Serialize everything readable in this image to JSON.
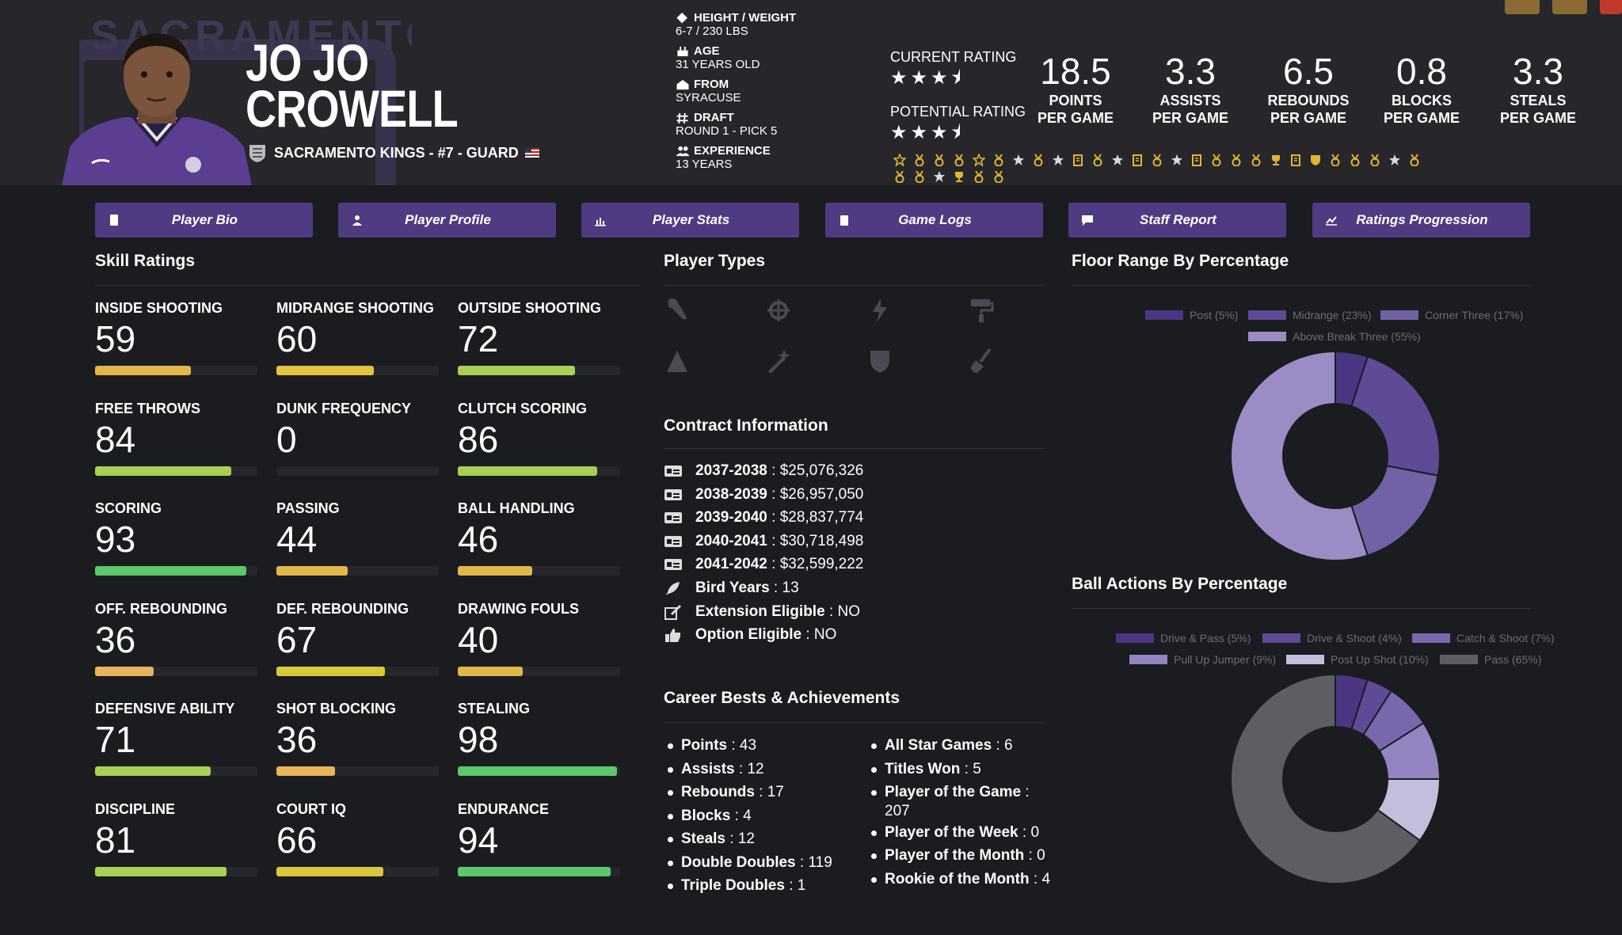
{
  "player": {
    "first_name": "JO JO",
    "last_name": "CROWELL",
    "team_line": "SACRAMENTO KINGS - #7 - GUARD",
    "logo_text": "SACRAMENTO"
  },
  "info": [
    {
      "icon": "ruler-icon",
      "label": "HEIGHT / WEIGHT",
      "value": "6-7 / 230 LBS"
    },
    {
      "icon": "cake-icon",
      "label": "AGE",
      "value": "31 YEARS OLD"
    },
    {
      "icon": "school-icon",
      "label": "FROM",
      "value": "SYRACUSE"
    },
    {
      "icon": "hash-icon",
      "label": "DRAFT",
      "value": "ROUND 1 - PICK 5"
    },
    {
      "icon": "users-icon",
      "label": "EXPERIENCE",
      "value": "13 YEARS"
    }
  ],
  "ratings": {
    "current_label": "CURRENT RATING",
    "current_stars": 3.5,
    "potential_label": "POTENTIAL RATING",
    "potential_stars": 3.5
  },
  "stats": [
    {
      "value": "18.5",
      "line1": "POINTS",
      "line2": "PER GAME"
    },
    {
      "value": "3.3",
      "line1": "ASSISTS",
      "line2": "PER GAME"
    },
    {
      "value": "6.5",
      "line1": "REBOUNDS",
      "line2": "PER GAME"
    },
    {
      "value": "0.8",
      "line1": "BLOCKS",
      "line2": "PER GAME"
    },
    {
      "value": "3.3",
      "line1": "STEALS",
      "line2": "PER GAME"
    }
  ],
  "badges": [
    "star-outline",
    "medal",
    "medal",
    "medal",
    "star-outline",
    "medal",
    "star",
    "medal",
    "star",
    "clipboard",
    "medal",
    "star",
    "clipboard",
    "medal",
    "star",
    "clipboard",
    "medal",
    "medal",
    "medal",
    "trophy",
    "clipboard",
    "shield",
    "medal",
    "medal",
    "medal",
    "star",
    "medal",
    "medal",
    "medal",
    "star",
    "trophy",
    "medal",
    "medal"
  ],
  "nav": [
    {
      "icon": "id-card-icon",
      "label": "Player Bio"
    },
    {
      "icon": "user-profile-icon",
      "label": "Player Profile"
    },
    {
      "icon": "bar-chart-icon",
      "label": "Player Stats"
    },
    {
      "icon": "clipboard-icon",
      "label": "Game Logs"
    },
    {
      "icon": "chat-icon",
      "label": "Staff Report"
    },
    {
      "icon": "line-chart-icon",
      "label": "Ratings Progression"
    }
  ],
  "sections": {
    "skills": "Skill Ratings",
    "player_types": "Player Types",
    "floor_range": "Floor Range By Percentage",
    "contract": "Contract Information",
    "career": "Career Bests & Achievements",
    "ball_actions": "Ball Actions By Percentage"
  },
  "skills": [
    {
      "name": "INSIDE SHOOTING",
      "value": 59,
      "color": "#e3b649"
    },
    {
      "name": "MIDRANGE SHOOTING",
      "value": 60,
      "color": "#e3c43c"
    },
    {
      "name": "OUTSIDE SHOOTING",
      "value": 72,
      "color": "#a9cf53"
    },
    {
      "name": "FREE THROWS",
      "value": 84,
      "color": "#a9cf53"
    },
    {
      "name": "DUNK FREQUENCY",
      "value": 0,
      "color": "#e3b649"
    },
    {
      "name": "CLUTCH SCORING",
      "value": 86,
      "color": "#a9cf53"
    },
    {
      "name": "SCORING",
      "value": 93,
      "color": "#5dc86a"
    },
    {
      "name": "PASSING",
      "value": 44,
      "color": "#e3b649"
    },
    {
      "name": "BALL HANDLING",
      "value": 46,
      "color": "#e3b649"
    },
    {
      "name": "OFF. REBOUNDING",
      "value": 36,
      "color": "#e8b45c"
    },
    {
      "name": "DEF. REBOUNDING",
      "value": 67,
      "color": "#d9c83a"
    },
    {
      "name": "DRAWING FOULS",
      "value": 40,
      "color": "#e3b649"
    },
    {
      "name": "DEFENSIVE ABILITY",
      "value": 71,
      "color": "#a9cf53"
    },
    {
      "name": "SHOT BLOCKING",
      "value": 36,
      "color": "#e8b45c"
    },
    {
      "name": "STEALING",
      "value": 98,
      "color": "#5dc86a"
    },
    {
      "name": "DISCIPLINE",
      "value": 81,
      "color": "#a9cf53"
    },
    {
      "name": "COURT IQ",
      "value": 66,
      "color": "#d9c83a"
    },
    {
      "name": "ENDURANCE",
      "value": 94,
      "color": "#5dc86a"
    }
  ],
  "player_types": [
    "wrench-icon",
    "crosshair-icon",
    "lightning-icon",
    "paint-roller-icon",
    "triangle-ruler-icon",
    "magic-wand-icon",
    "shield-icon",
    "broom-icon"
  ],
  "contract": [
    {
      "icon": "money-icon",
      "label": "2037-2038",
      "value": "$25,076,326"
    },
    {
      "icon": "money-icon",
      "label": "2038-2039",
      "value": "$26,957,050"
    },
    {
      "icon": "money-icon",
      "label": "2039-2040",
      "value": "$28,837,774"
    },
    {
      "icon": "money-icon",
      "label": "2040-2041",
      "value": "$30,718,498"
    },
    {
      "icon": "money-icon",
      "label": "2041-2042",
      "value": "$32,599,222"
    },
    {
      "icon": "feather-icon",
      "label": "Bird Years",
      "value": "13"
    },
    {
      "icon": "edit-icon",
      "label": "Extension Eligible",
      "value": "NO"
    },
    {
      "icon": "thumbs-up-icon",
      "label": "Option Eligible",
      "value": "NO"
    }
  ],
  "career_left": [
    {
      "label": "Points",
      "value": "43"
    },
    {
      "label": "Assists",
      "value": "12"
    },
    {
      "label": "Rebounds",
      "value": "17"
    },
    {
      "label": "Blocks",
      "value": "4"
    },
    {
      "label": "Steals",
      "value": "12"
    },
    {
      "label": "Double Doubles",
      "value": "119"
    },
    {
      "label": "Triple Doubles",
      "value": "1"
    }
  ],
  "career_right": [
    {
      "label": "All Star Games",
      "value": "6"
    },
    {
      "label": "Titles Won",
      "value": "5"
    },
    {
      "label": "Player of the Game",
      "value": "207"
    },
    {
      "label": "Player of the Week",
      "value": "0"
    },
    {
      "label": "Player of the Month",
      "value": "0"
    },
    {
      "label": "Rookie of the Month",
      "value": "4"
    }
  ],
  "chart_data": [
    {
      "type": "pie",
      "title": "Floor Range By Percentage",
      "categories": [
        "Post (5%)",
        "Midrange (23%)",
        "Corner Three (17%)",
        "Above Break Three (55%)"
      ],
      "values": [
        5,
        23,
        17,
        55
      ],
      "colors": [
        "#4b3683",
        "#5f4a96",
        "#7361a6",
        "#9c8cc6"
      ],
      "legend": "top"
    },
    {
      "type": "pie",
      "title": "Ball Actions By Percentage",
      "categories": [
        "Drive & Pass (5%)",
        "Drive & Shoot (4%)",
        "Catch & Shoot (7%)",
        "Pull Up Jumper (9%)",
        "Post Up Shot (10%)",
        "Pass (65%)"
      ],
      "values": [
        5,
        4,
        7,
        9,
        10,
        65
      ],
      "colors": [
        "#4b3683",
        "#5f4a96",
        "#7968ae",
        "#9484c2",
        "#c3bedb",
        "#5d5e64"
      ],
      "legend": "top"
    }
  ]
}
